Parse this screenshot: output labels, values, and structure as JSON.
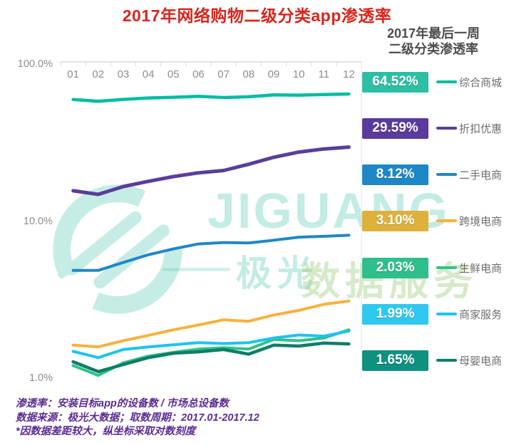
{
  "title": {
    "text": "2017年网络购物二级分类app渗透率",
    "color": "#d8261c"
  },
  "legend_header": {
    "line1": "2017年最后一周",
    "line2": "二级分类渗透率"
  },
  "chart_data": {
    "type": "line",
    "title": "2017年网络购物二级分类app渗透率",
    "x_categories": [
      "01",
      "02",
      "03",
      "04",
      "05",
      "06",
      "07",
      "08",
      "09",
      "10",
      "11",
      "12"
    ],
    "y_axis": {
      "scale": "log",
      "ticks": [
        "100.0%",
        "10.0%",
        "1.0%"
      ],
      "min_percent": 1,
      "max_percent": 100
    },
    "grid": "top-axis-only",
    "legend_position": "right",
    "axis_text_color": "#8c8c8c",
    "axis_line_color": "#d9d9d9",
    "series": [
      {
        "name": "综合商城",
        "final_value_label": "64.52%",
        "line_color": "#00bca0",
        "badge_color": "#2cbfa4",
        "values": [
          59.5,
          58.0,
          59.6,
          60.8,
          61.5,
          62.3,
          61.2,
          61.9,
          63.6,
          63.4,
          64.0,
          64.52
        ]
      },
      {
        "name": "折扣优惠",
        "final_value_label": "29.59%",
        "line_color": "#5a3d9c",
        "badge_color": "#5b3a9e",
        "values": [
          15.6,
          14.8,
          16.6,
          17.9,
          19.2,
          20.3,
          21.0,
          23.0,
          25.5,
          27.5,
          28.8,
          29.59
        ]
      },
      {
        "name": "二手电商",
        "final_value_label": "8.12%",
        "line_color": "#1f87c8",
        "badge_color": "#1e87c6",
        "values": [
          4.85,
          4.85,
          5.45,
          6.1,
          6.65,
          7.15,
          7.3,
          7.25,
          7.55,
          7.9,
          8.0,
          8.12
        ]
      },
      {
        "name": "跨境电商",
        "final_value_label": "3.10%",
        "line_color": "#f6b23e",
        "badge_color": "#deb13d",
        "values": [
          1.62,
          1.58,
          1.73,
          1.87,
          2.03,
          2.18,
          2.35,
          2.3,
          2.52,
          2.7,
          2.95,
          3.1
        ]
      },
      {
        "name": "生鲜电商",
        "final_value_label": "2.03%",
        "line_color": "#2ec487",
        "badge_color": "#2fbf8c",
        "values": [
          1.2,
          1.04,
          1.25,
          1.38,
          1.46,
          1.53,
          1.56,
          1.53,
          1.76,
          1.73,
          1.8,
          2.03
        ]
      },
      {
        "name": "商家服务",
        "final_value_label": "1.99%",
        "line_color": "#1ec3f0",
        "badge_color": "#2fc8f0",
        "values": [
          1.48,
          1.35,
          1.52,
          1.58,
          1.63,
          1.68,
          1.66,
          1.68,
          1.8,
          1.88,
          1.85,
          1.99
        ]
      },
      {
        "name": "母婴电商",
        "final_value_label": "1.65%",
        "line_color": "#107d6a",
        "badge_color": "#0f9180",
        "values": [
          1.27,
          1.1,
          1.22,
          1.35,
          1.44,
          1.47,
          1.52,
          1.42,
          1.62,
          1.6,
          1.67,
          1.65
        ]
      }
    ]
  },
  "watermark": {
    "logo_text": "JIGUANG",
    "brand": "极光",
    "suffix": "数据服务",
    "color": "#34c1a6"
  },
  "footer": {
    "color": "#5b2d91",
    "lines": [
      "渗透率：安装目标app的设备数 / 市场总设备数",
      "数据来源：极光大数据；取数周期：2017.01-2017.12",
      "*因数据差距较大，纵坐标采取对数刻度"
    ]
  }
}
